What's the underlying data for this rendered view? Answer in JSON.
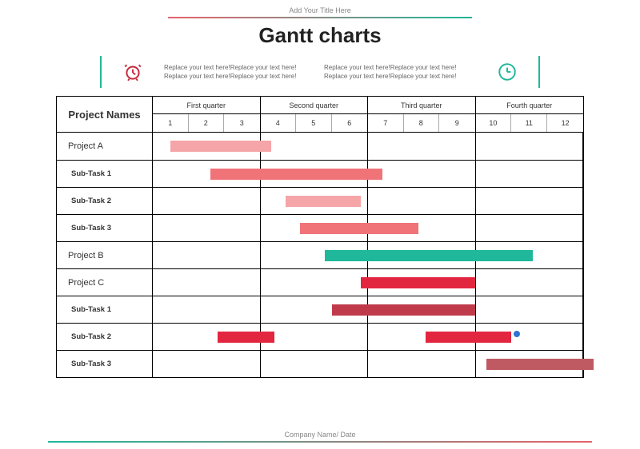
{
  "header": {
    "subtitle": "Add Your Title Here",
    "title": "Gantt charts",
    "gradient_from": "#e8616c",
    "gradient_to": "#1fb89a",
    "accent_red": "#c6283c",
    "accent_teal": "#1fb89a"
  },
  "info": {
    "col1_line1": "Replace your text here!Replace your text here!",
    "col1_line2": "Replace your text here!Replace your text here!",
    "col2_line1": "Replace your text here!Replace your text here!",
    "col2_line2": "Replace your text here!Replace your text here!"
  },
  "gantt": {
    "rowlabel_head": "Project Names",
    "quarters": [
      "First quarter",
      "Second quarter",
      "Third quarter",
      "Fourth quarter"
    ],
    "months": [
      "1",
      "2",
      "3",
      "4",
      "5",
      "6",
      "7",
      "8",
      "9",
      "10",
      "11",
      "12"
    ],
    "month_count": 12,
    "rows": [
      {
        "label": "Project A",
        "sub": false,
        "bars": [
          {
            "start": 0.5,
            "end": 3.3,
            "color": "#f5a5a7"
          }
        ]
      },
      {
        "label": "Sub-Task 1",
        "sub": true,
        "bars": [
          {
            "start": 1.6,
            "end": 6.4,
            "color": "#f07378"
          }
        ]
      },
      {
        "label": "Sub-Task 2",
        "sub": true,
        "bars": [
          {
            "start": 3.7,
            "end": 5.8,
            "color": "#f5a5a7"
          }
        ]
      },
      {
        "label": "Sub-Task 3",
        "sub": true,
        "bars": [
          {
            "start": 4.1,
            "end": 7.4,
            "color": "#f07378"
          }
        ]
      },
      {
        "label": "Project B",
        "sub": false,
        "bars": [
          {
            "start": 4.8,
            "end": 10.6,
            "color": "#1fb89a"
          }
        ]
      },
      {
        "label": "Project C",
        "sub": false,
        "bars": [
          {
            "start": 5.8,
            "end": 9.0,
            "color": "#e3263f"
          }
        ]
      },
      {
        "label": "Sub-Task 1",
        "sub": true,
        "bars": [
          {
            "start": 5.0,
            "end": 9.0,
            "color": "#bf3a4a"
          }
        ]
      },
      {
        "label": "Sub-Task 2",
        "sub": true,
        "bars": [
          {
            "start": 1.8,
            "end": 3.4,
            "color": "#e3263f"
          },
          {
            "start": 7.6,
            "end": 10.0,
            "color": "#e3263f"
          }
        ],
        "dot": {
          "pos": 10.05,
          "color": "#2f74d0"
        }
      },
      {
        "label": "Sub-Task 3",
        "sub": true,
        "bars": [
          {
            "start": 9.3,
            "end": 12.3,
            "color": "#bf5a62"
          }
        ]
      }
    ]
  },
  "footer": {
    "text": "Company Name/ Date",
    "gradient_from": "#1fb89a",
    "gradient_to": "#e8616c"
  }
}
